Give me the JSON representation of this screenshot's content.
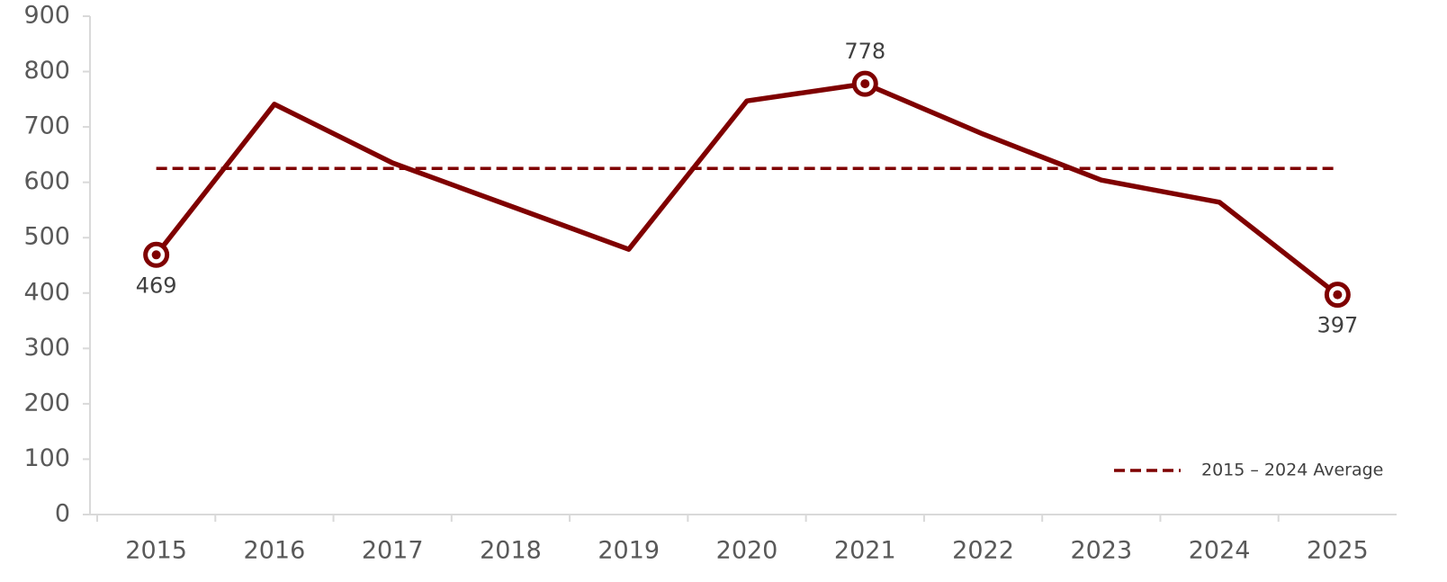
{
  "chart_data": {
    "type": "line",
    "categories": [
      "2015",
      "2016",
      "2017",
      "2018",
      "2019",
      "2020",
      "2021",
      "2022",
      "2023",
      "2024",
      "2025"
    ],
    "series": [
      {
        "color": "#7f0000",
        "values": [
          469,
          741,
          635,
          557,
          479,
          747,
          778,
          687,
          604,
          564,
          397
        ],
        "value_labels": [
          "469",
          null,
          null,
          null,
          null,
          null,
          "778",
          null,
          null,
          null,
          "397"
        ]
      },
      {
        "name": "2015 – 2024 Average",
        "color": "#7f0000",
        "dashed": true,
        "values": [
          625,
          625,
          625,
          625,
          625,
          625,
          625,
          625,
          625,
          625,
          625
        ]
      }
    ],
    "ylim": [
      0,
      900
    ],
    "yticks": [
      0,
      100,
      200,
      300,
      400,
      500,
      600,
      700,
      800,
      900
    ],
    "grid": false,
    "legend": "bottom-right"
  }
}
